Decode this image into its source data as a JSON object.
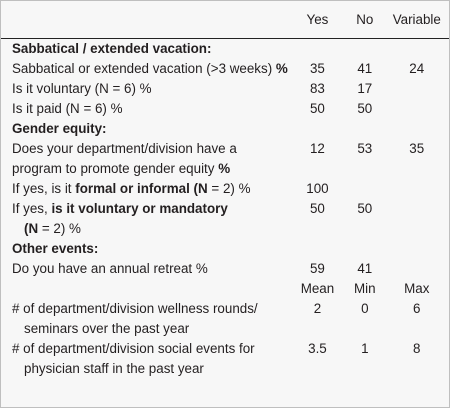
{
  "columns": {
    "yes": "Yes",
    "no": "No",
    "variable": "Variable"
  },
  "sabbatical": {
    "heading": "Sabbatical / extended vacation:",
    "rows": [
      {
        "label": "Sabbatical or extended vacation (>3 weeks)",
        "unit": "%",
        "yes": "35",
        "no": "41",
        "variable": "24"
      },
      {
        "label": "Is it voluntary (N = 6) %",
        "yes": "83",
        "no": "17",
        "variable": ""
      },
      {
        "label": "Is it paid (N = 6) %",
        "yes": "50",
        "no": "50",
        "variable": ""
      }
    ]
  },
  "gender": {
    "heading": "Gender equity:",
    "row1": {
      "line1": "Does your department/division have a",
      "line2": "program to promote gender equity",
      "unit": "%",
      "yes": "12",
      "no": "53",
      "variable": "35"
    },
    "row2": {
      "prefix": "If yes, is it ",
      "bold": "formal or informal (N",
      "suffix": " = 2) %",
      "yes": "100",
      "no": "",
      "variable": ""
    },
    "row3": {
      "prefix": "If yes, ",
      "bold": "is it voluntary or mandatory",
      "line2_bold": "(N",
      "line2_suffix": " = 2) %",
      "yes": "50",
      "no": "50",
      "variable": ""
    }
  },
  "other": {
    "heading": "Other events:",
    "row1": {
      "label": "Do you have an annual retreat %",
      "yes": "59",
      "no": "41",
      "variable": ""
    },
    "subheader": {
      "mean": "Mean",
      "min": "Min",
      "max": "Max"
    },
    "row2": {
      "line1": "# of department/division wellness rounds/",
      "line2": "seminars over the past year",
      "mean": "2",
      "min": "0",
      "max": "6"
    },
    "row3": {
      "line1": "# of department/division social events for",
      "line2": "physician staff in the past year",
      "mean": "3.5",
      "min": "1",
      "max": "8"
    }
  }
}
